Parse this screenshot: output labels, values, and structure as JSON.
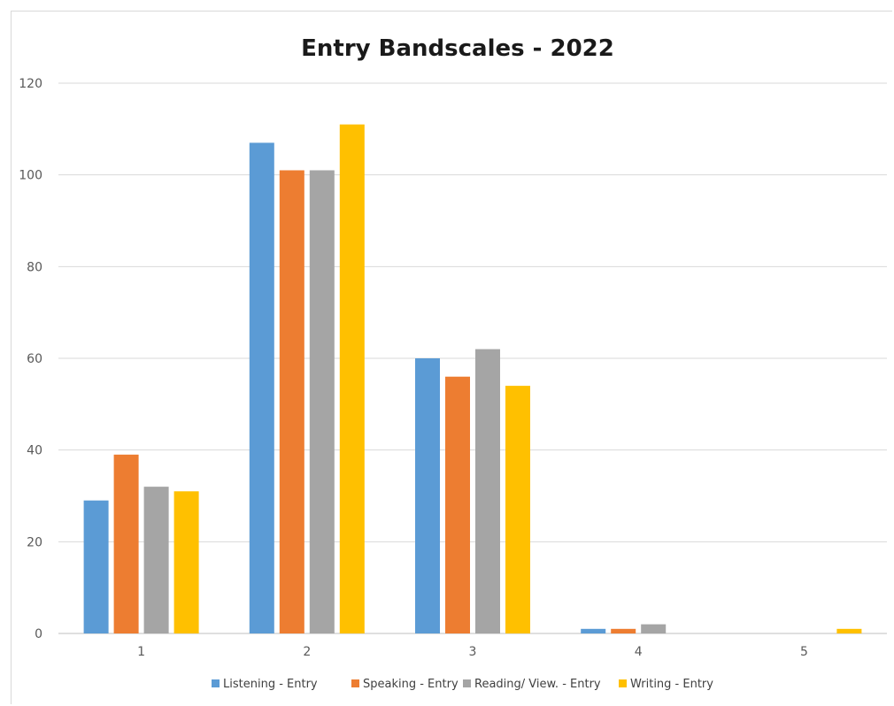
{
  "chart_data": {
    "type": "bar",
    "title": "Entry Bandscales - 2022",
    "xlabel": "",
    "ylabel": "",
    "categories": [
      "1",
      "2",
      "3",
      "4",
      "5"
    ],
    "ylim": [
      0,
      120
    ],
    "yticks": [
      "0",
      "20",
      "40",
      "60",
      "80",
      "100",
      "120"
    ],
    "grid": true,
    "legend_position": "bottom",
    "series": [
      {
        "name": "Listening - Entry",
        "color": "#5b9bd5",
        "values": [
          29,
          107,
          60,
          1,
          0
        ]
      },
      {
        "name": "Speaking - Entry",
        "color": "#ed7d31",
        "values": [
          39,
          101,
          56,
          1,
          0
        ]
      },
      {
        "name": "Reading/ View. - Entry",
        "color": "#a5a5a5",
        "values": [
          32,
          101,
          62,
          2,
          0
        ]
      },
      {
        "name": "Writing - Entry",
        "color": "#ffc000",
        "values": [
          31,
          111,
          54,
          0,
          1
        ]
      }
    ]
  }
}
